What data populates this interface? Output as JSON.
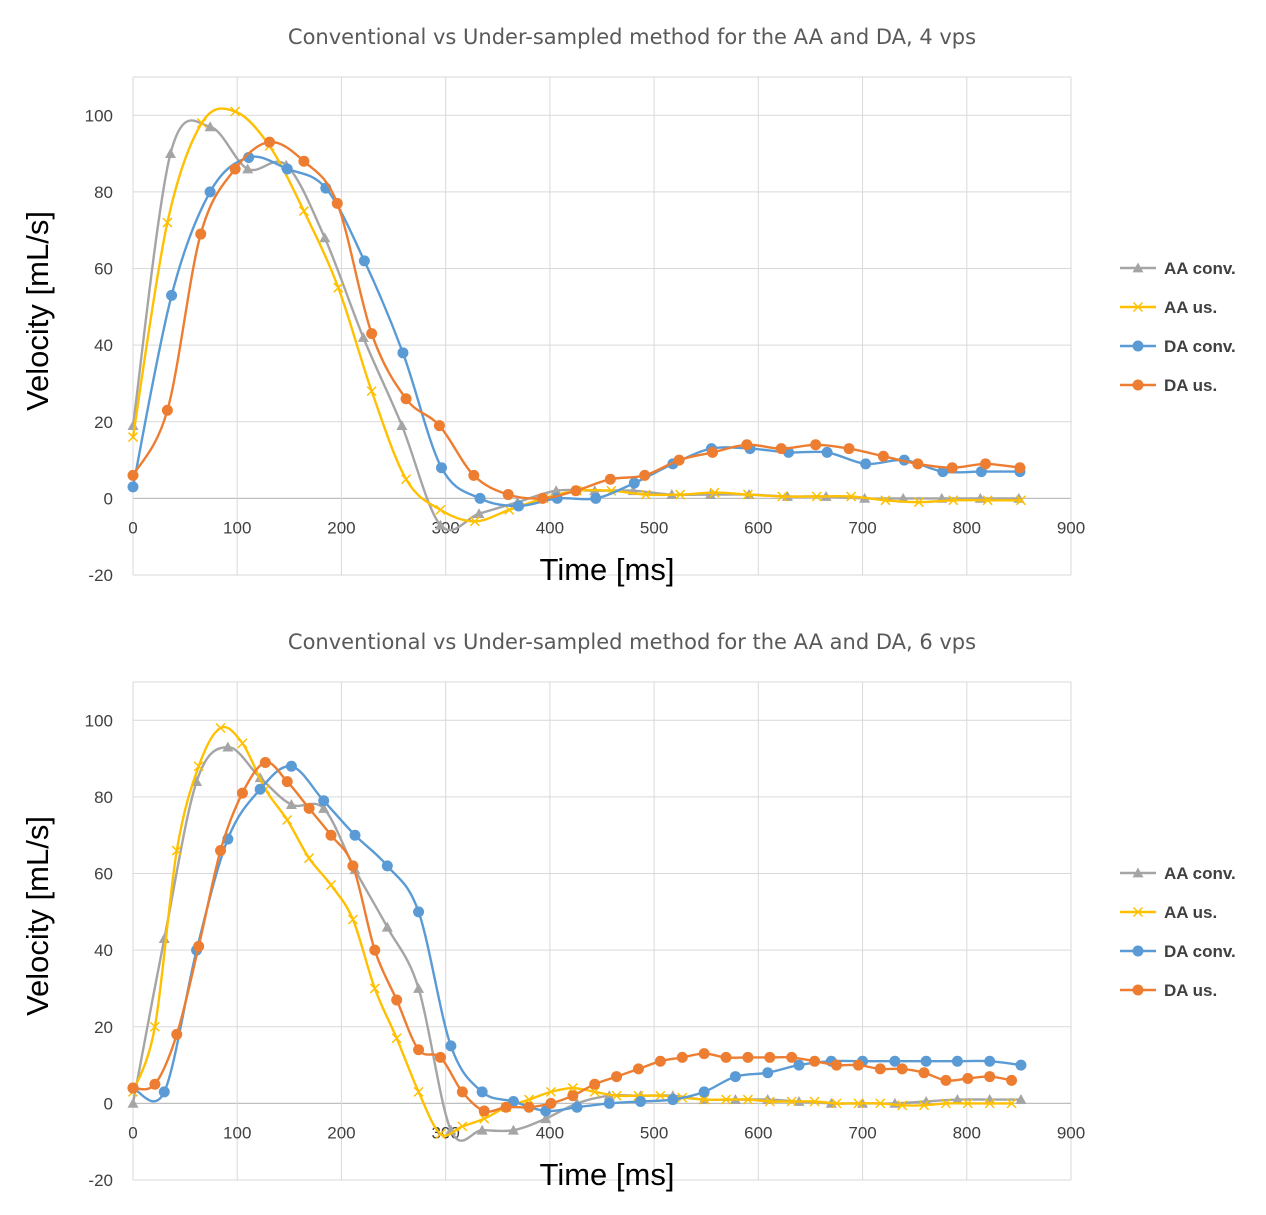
{
  "chart_data": [
    {
      "type": "line",
      "title": "Conventional vs Under-sampled method for the AA and DA, 4 vps",
      "xlabel": "Time [ms]",
      "ylabel": "Velocity [mL/s]",
      "xlim": [
        0,
        900
      ],
      "ylim": [
        -20,
        110
      ],
      "xticks": [
        0,
        100,
        200,
        300,
        400,
        500,
        600,
        700,
        800,
        900
      ],
      "yticks": [
        -20,
        0,
        20,
        40,
        60,
        80,
        100
      ],
      "legend_position": "right",
      "series": [
        {
          "name": "AA conv.",
          "color": "#a5a5a5",
          "marker": "triangle",
          "x": [
            0,
            36,
            74,
            110,
            147,
            184,
            221,
            258,
            295,
            332,
            369,
            406,
            443,
            480,
            517,
            554,
            591,
            628,
            665,
            702,
            739,
            776,
            813,
            850
          ],
          "y": [
            19,
            90,
            97,
            86,
            87,
            68,
            42,
            19,
            -7,
            -4,
            -1,
            2,
            2,
            2,
            1,
            1,
            1,
            0.5,
            0.5,
            0,
            0,
            0,
            0,
            0
          ]
        },
        {
          "name": "AA us.",
          "color": "#ffc000",
          "marker": "x",
          "x": [
            0,
            33,
            66,
            98,
            131,
            164,
            197,
            229,
            262,
            295,
            328,
            361,
            394,
            426,
            459,
            492,
            525,
            558,
            590,
            623,
            656,
            689,
            722,
            754,
            787,
            820,
            852
          ],
          "y": [
            16,
            72,
            98,
            101,
            92,
            75,
            55,
            28,
            5,
            -3,
            -6,
            -3,
            0,
            2,
            2,
            1,
            1,
            1.5,
            1,
            0.5,
            0.5,
            0.5,
            -0.5,
            -1,
            -0.5,
            -0.5,
            -0.5
          ],
          "smooth": true
        },
        {
          "name": "DA conv.",
          "color": "#5b9bd5",
          "marker": "circle",
          "x": [
            0,
            37,
            74,
            111,
            148,
            185,
            222,
            259,
            296,
            333,
            370,
            407,
            444,
            481,
            518,
            555,
            592,
            629,
            666,
            703,
            740,
            777,
            814,
            851
          ],
          "y": [
            3,
            53,
            80,
            89,
            86,
            81,
            62,
            38,
            8,
            0,
            -2,
            0,
            0,
            4,
            9,
            13,
            13,
            12,
            12,
            9,
            10,
            7,
            7,
            7
          ],
          "smooth": true
        },
        {
          "name": "DA us.",
          "color": "#ed7d31",
          "marker": "circle",
          "x": [
            0,
            33,
            65,
            98,
            131,
            164,
            196,
            229,
            262,
            294,
            327,
            360,
            393,
            425,
            458,
            491,
            524,
            556,
            589,
            622,
            655,
            687,
            720,
            753,
            786,
            818,
            851
          ],
          "y": [
            6,
            23,
            69,
            86,
            93,
            88,
            77,
            43,
            26,
            19,
            6,
            1,
            0,
            2,
            5,
            6,
            10,
            12,
            14,
            13,
            14,
            13,
            11,
            9,
            8,
            9,
            8
          ],
          "smooth": true
        }
      ]
    },
    {
      "type": "line",
      "title": "Conventional vs Under-sampled method for the AA and DA, 6 vps",
      "xlabel": "Time [ms]",
      "ylabel": "Velocity [mL/s]",
      "xlim": [
        0,
        900
      ],
      "ylim": [
        -20,
        110
      ],
      "xticks": [
        0,
        100,
        200,
        300,
        400,
        500,
        600,
        700,
        800,
        900
      ],
      "yticks": [
        -20,
        0,
        20,
        40,
        60,
        80,
        100
      ],
      "legend_position": "right",
      "series": [
        {
          "name": "AA conv.",
          "color": "#a5a5a5",
          "marker": "triangle",
          "x": [
            0,
            30,
            61,
            91,
            122,
            152,
            183,
            213,
            244,
            274,
            305,
            335,
            365,
            396,
            426,
            457,
            487,
            518,
            548,
            578,
            609,
            639,
            670,
            700,
            731,
            761,
            791,
            822,
            852
          ],
          "y": [
            0,
            43,
            84,
            93,
            85,
            78,
            77,
            61,
            46,
            30,
            -7,
            -7,
            -7,
            -4,
            0,
            2,
            2,
            2,
            1,
            1,
            1,
            0.5,
            0,
            0,
            0,
            0.5,
            1,
            1,
            1
          ],
          "smooth": true
        },
        {
          "name": "AA us.",
          "color": "#ffc000",
          "marker": "x",
          "x": [
            0,
            21,
            42,
            63,
            84,
            105,
            127,
            148,
            169,
            190,
            211,
            232,
            253,
            274,
            295,
            316,
            337,
            358,
            380,
            401,
            422,
            443,
            464,
            485,
            506,
            527,
            548,
            569,
            590,
            611,
            632,
            654,
            675,
            696,
            717,
            738,
            759,
            780,
            801,
            822,
            843
          ],
          "y": [
            3,
            20,
            66,
            88,
            98,
            94,
            82,
            74,
            64,
            57,
            48,
            30,
            17,
            3,
            -8,
            -6,
            -4,
            -1,
            1,
            3,
            4,
            3,
            2,
            2,
            2,
            1.5,
            1,
            1,
            1,
            0.5,
            0.5,
            0.5,
            0,
            0,
            0,
            -0.5,
            -0.5,
            0,
            0,
            0,
            0
          ],
          "smooth": true
        },
        {
          "name": "DA conv.",
          "color": "#5b9bd5",
          "marker": "circle",
          "x": [
            0,
            30,
            61,
            91,
            122,
            152,
            183,
            213,
            244,
            274,
            305,
            335,
            365,
            396,
            426,
            457,
            487,
            518,
            548,
            578,
            609,
            639,
            670,
            700,
            731,
            761,
            791,
            822,
            852
          ],
          "y": [
            4,
            3,
            40,
            69,
            82,
            88,
            79,
            70,
            62,
            50,
            15,
            3,
            0.5,
            -2,
            -1,
            0,
            0.5,
            1,
            3,
            7,
            8,
            10,
            11,
            11,
            11,
            11,
            11,
            11,
            10
          ],
          "smooth": true
        },
        {
          "name": "DA us.",
          "color": "#ed7d31",
          "marker": "circle",
          "x": [
            0,
            21,
            42,
            63,
            84,
            105,
            127,
            148,
            169,
            190,
            211,
            232,
            253,
            274,
            295,
            316,
            337,
            358,
            380,
            401,
            422,
            443,
            464,
            485,
            506,
            527,
            548,
            569,
            590,
            611,
            632,
            654,
            675,
            696,
            717,
            738,
            759,
            780,
            801,
            822,
            843
          ],
          "y": [
            4,
            5,
            18,
            41,
            66,
            81,
            89,
            84,
            77,
            70,
            62,
            40,
            27,
            14,
            12,
            3,
            -2,
            -1,
            -1,
            0,
            2,
            5,
            7,
            9,
            11,
            12,
            13,
            12,
            12,
            12,
            12,
            11,
            10,
            10,
            9,
            9,
            8,
            6,
            6.5,
            7,
            6
          ],
          "smooth": true
        }
      ]
    }
  ]
}
